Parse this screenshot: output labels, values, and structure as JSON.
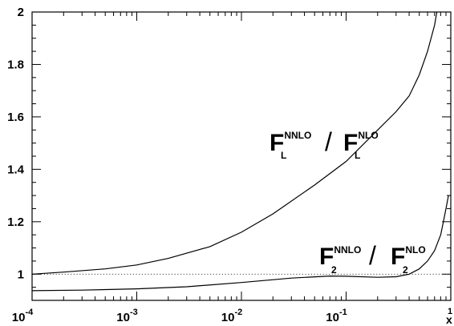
{
  "chart_data": {
    "type": "line",
    "x_scale": "log",
    "xlim": [
      0.0001,
      1
    ],
    "ylim": [
      0.9,
      2.0
    ],
    "xlabel": "x",
    "ylabel": "",
    "title": "",
    "x_tick_labels": [
      {
        "base": "10",
        "exp": "-4",
        "value": 0.0001
      },
      {
        "base": "10",
        "exp": "-3",
        "value": 0.001
      },
      {
        "base": "10",
        "exp": "-2",
        "value": 0.01
      },
      {
        "base": "10",
        "exp": "-1",
        "value": 0.1
      },
      {
        "base": "",
        "exp": "1",
        "value": 1
      }
    ],
    "y_ticks": [
      1,
      1.2,
      1.4,
      1.6,
      1.8,
      2
    ],
    "y_tick_labels": [
      "1",
      "1.2",
      "1.4",
      "1.6",
      "1.8",
      "2"
    ],
    "reference_line": {
      "y": 1,
      "style": "dotted"
    },
    "series": [
      {
        "id": "FL",
        "x": [
          0.0001,
          0.0002,
          0.0005,
          0.001,
          0.002,
          0.005,
          0.01,
          0.02,
          0.05,
          0.1,
          0.2,
          0.3,
          0.4,
          0.5,
          0.6,
          0.7,
          0.75,
          0.78
        ],
        "y": [
          1.0,
          1.008,
          1.02,
          1.035,
          1.06,
          1.105,
          1.16,
          1.23,
          1.34,
          1.43,
          1.55,
          1.62,
          1.68,
          1.76,
          1.85,
          1.95,
          2.02,
          2.1
        ]
      },
      {
        "id": "F2",
        "x": [
          0.0001,
          0.0003,
          0.001,
          0.003,
          0.01,
          0.03,
          0.07,
          0.1,
          0.2,
          0.3,
          0.4,
          0.5,
          0.6,
          0.7,
          0.8,
          0.85,
          0.9,
          0.95
        ],
        "y": [
          0.937,
          0.939,
          0.944,
          0.952,
          0.968,
          0.985,
          0.993,
          0.992,
          0.988,
          0.99,
          1.0,
          1.02,
          1.05,
          1.09,
          1.15,
          1.2,
          1.25,
          1.3
        ]
      }
    ],
    "annotations": [
      {
        "id": "FL",
        "num": {
          "base": "F",
          "sup": "NNLO",
          "sub": "L"
        },
        "slash": "/",
        "den": {
          "base": "F",
          "sup": "NLO",
          "sub": "L"
        }
      },
      {
        "id": "F2",
        "num": {
          "base": "F",
          "sup": "NNLO",
          "sub": "2"
        },
        "slash": "/",
        "den": {
          "base": "F",
          "sup": "NLO",
          "sub": "2"
        }
      }
    ]
  }
}
